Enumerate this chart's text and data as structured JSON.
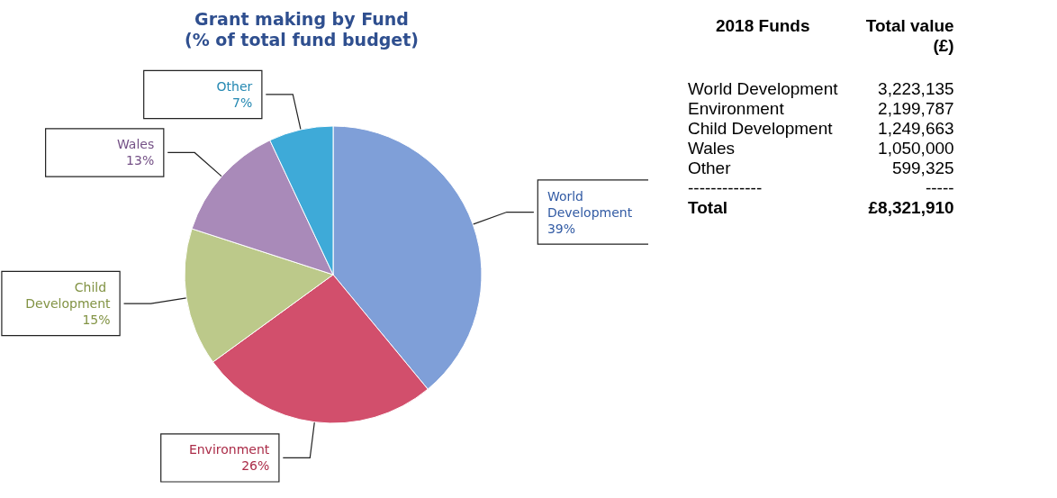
{
  "chart_data": [
    {
      "type": "pie",
      "title": "Grant making by Fund",
      "subtitle": "(% of total fund budget)",
      "categories": [
        "World Development",
        "Environment",
        "Child Development",
        "Wales",
        "Other"
      ],
      "values": [
        39,
        26,
        15,
        13,
        7
      ],
      "colors": [
        "#7f9fd8",
        "#d24f6c",
        "#bcc98a",
        "#a98ab9",
        "#3eaad8"
      ],
      "value_labels": [
        "39%",
        "26%",
        "15%",
        "13%",
        "7%"
      ],
      "legend": false
    },
    {
      "type": "other",
      "categories": [
        "World Development",
        "Environment",
        "Child Development",
        "Wales",
        "Other"
      ],
      "value_labels": [
        "3,223,135",
        "2,199,787",
        "1,249,663",
        "1,050,000",
        "599,325"
      ],
      "annotations": [
        "2018 Funds",
        "Total value (£)",
        "-------------",
        "-----",
        "Total",
        "£8,321,910"
      ]
    }
  ]
}
